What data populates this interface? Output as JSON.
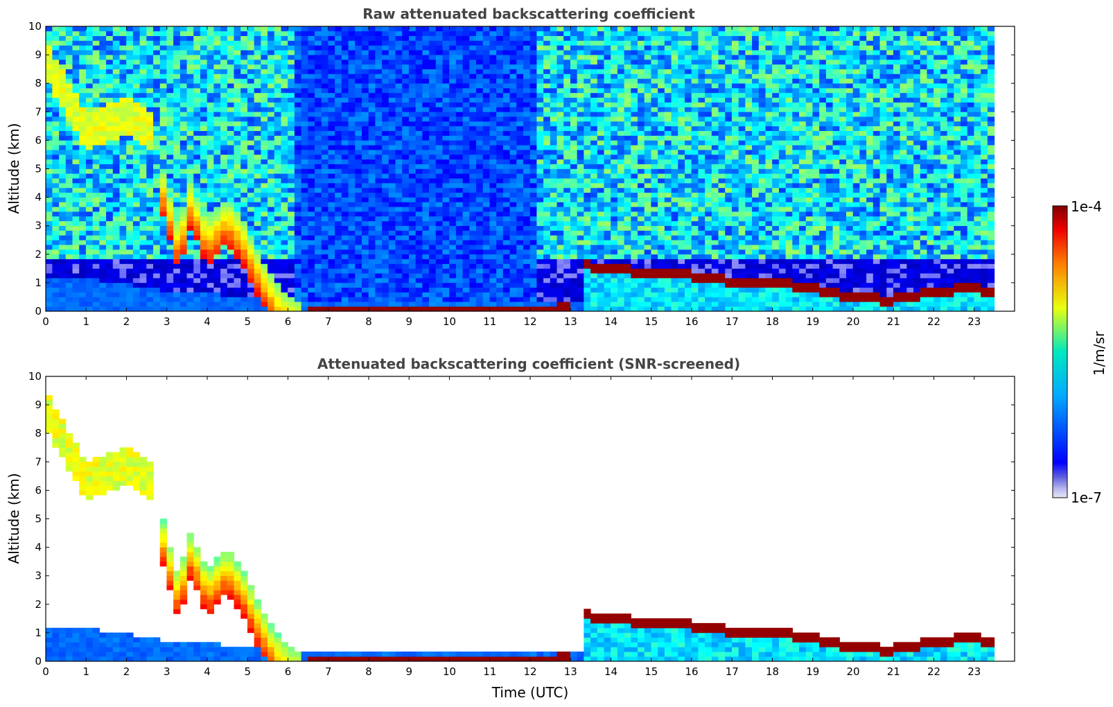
{
  "chart_data": [
    {
      "type": "heatmap",
      "title": "Raw attenuated backscattering coefficient",
      "xlabel": "",
      "ylabel": "Altitude (km)",
      "xlim": [
        0,
        24
      ],
      "ylim": [
        0,
        10
      ],
      "x_ticks": [
        "0",
        "1",
        "2",
        "3",
        "4",
        "5",
        "6",
        "7",
        "8",
        "9",
        "10",
        "11",
        "12",
        "13",
        "14",
        "15",
        "16",
        "17",
        "18",
        "19",
        "20",
        "21",
        "22",
        "23"
      ],
      "y_ticks": [
        "0",
        "1",
        "2",
        "3",
        "4",
        "5",
        "6",
        "7",
        "8",
        "9",
        "10"
      ],
      "data_end_time": 23.5,
      "grid": false,
      "features": [
        {
          "name": "boundary-layer aerosol",
          "t": [
            0,
            1,
            2,
            3,
            4,
            5,
            5.6
          ],
          "top": [
            1.25,
            1.15,
            0.95,
            0.7,
            0.6,
            0.55,
            0.3
          ],
          "level": 0.22
        },
        {
          "name": "descending cloud",
          "t": [
            2.9,
            3.3,
            3.6,
            4.0,
            4.5,
            4.9,
            5.3,
            5.7,
            6.0,
            6.4
          ],
          "top": [
            5.0,
            3.0,
            4.6,
            3.2,
            4.0,
            3.2,
            2.0,
            1.0,
            0.6,
            0.25
          ],
          "level": 0.8
        },
        {
          "name": "fog layer",
          "t": [
            6.5,
            8,
            10,
            12,
            13
          ],
          "top": [
            0.15,
            0.12,
            0.12,
            0.15,
            0.3
          ],
          "level": 0.98
        },
        {
          "name": "stratocumulus top",
          "t": [
            13.3,
            14,
            15,
            16,
            17,
            18,
            19,
            20,
            21,
            22,
            23,
            23.4
          ],
          "top": [
            1.6,
            1.5,
            1.3,
            1.25,
            1.05,
            1.0,
            0.8,
            0.45,
            0.4,
            0.7,
            0.8,
            0.65
          ],
          "level": 0.98
        },
        {
          "name": "cirrus",
          "t": [
            0,
            1,
            2,
            2.6
          ],
          "top": [
            9.5,
            7.0,
            7.5,
            7.0
          ],
          "level": 0.6
        }
      ]
    },
    {
      "type": "heatmap",
      "title": "Attenuated backscattering coefficient (SNR-screened)",
      "xlabel": "Time (UTC)",
      "ylabel": "Altitude (km)",
      "xlim": [
        0,
        24
      ],
      "ylim": [
        0,
        10
      ],
      "x_ticks": [
        "0",
        "1",
        "2",
        "3",
        "4",
        "5",
        "6",
        "7",
        "8",
        "9",
        "10",
        "11",
        "12",
        "13",
        "14",
        "15",
        "16",
        "17",
        "18",
        "19",
        "20",
        "21",
        "22",
        "23"
      ],
      "y_ticks": [
        "0",
        "1",
        "2",
        "3",
        "4",
        "5",
        "6",
        "7",
        "8",
        "9",
        "10"
      ],
      "data_end_time": 23.5,
      "grid": false,
      "screened": true
    }
  ],
  "colorbar": {
    "label": "1/m/sr",
    "max_label": "1e-4",
    "min_label": "1e-7",
    "scale": "log",
    "range": [
      1e-07,
      0.0001
    ],
    "colormap": "jet",
    "low_end_colors": [
      "#e8e8f8",
      "#c8c8f0",
      "#a0a0e8",
      "#7070e0"
    ]
  }
}
